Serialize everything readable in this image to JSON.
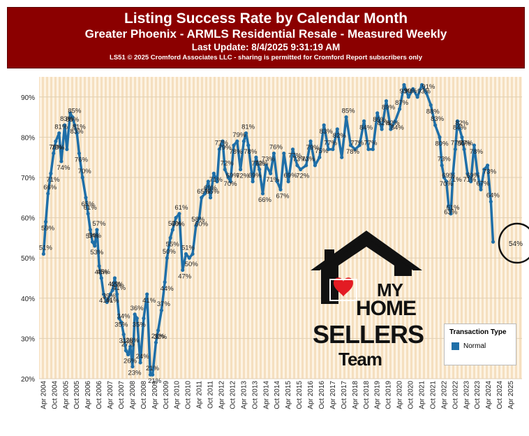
{
  "header": {
    "title": "Listing Success Rate by Calendar Month",
    "subtitle": "Greater Phoenix - ARMLS Residential Resale - Measured Weekly",
    "last_update": "Last Update: 8/4/2025 9:31:19 AM",
    "copyright": "LS51 © 2025 Cromford Associates LLC - sharing is permitted for Cromford Report subscribers only"
  },
  "legend": {
    "title": "Transaction Type",
    "item": "Normal",
    "color": "#1f6fa8"
  },
  "logo": {
    "line1": "MY",
    "line2": "HOME",
    "line3": "SELLERS",
    "line4": "Team",
    "heart_color": "#e31b23"
  },
  "annotation": {
    "circled_label": "54%"
  },
  "chart_data": {
    "type": "line",
    "title": "Listing Success Rate by Calendar Month",
    "ylim": [
      20,
      95
    ],
    "y_ticks": [
      "20%",
      "30%",
      "40%",
      "50%",
      "60%",
      "70%",
      "80%",
      "90%"
    ],
    "y_tick_values": [
      20,
      30,
      40,
      50,
      60,
      70,
      80,
      90
    ],
    "x_ticks": [
      "Apr 2004",
      "Oct 2004",
      "Apr 2005",
      "Oct 2005",
      "Apr 2006",
      "Oct 2006",
      "Apr 2007",
      "Oct 2007",
      "Apr 2008",
      "Oct 2008",
      "Apr 2009",
      "Oct 2009",
      "Apr 2010",
      "Oct 2010",
      "Apr 2011",
      "Oct 2011",
      "Apr 2012",
      "Oct 2012",
      "Apr 2013",
      "Oct 2013",
      "Apr 2014",
      "Oct 2014",
      "Apr 2015",
      "Oct 2015",
      "Apr 2016",
      "Oct 2016",
      "Apr 2017",
      "Oct 2017",
      "Apr 2018",
      "Oct 2018",
      "Apr 2019",
      "Oct 2019",
      "Apr 2020",
      "Oct 2020",
      "Apr 2021",
      "Oct 2021",
      "Apr 2022",
      "Oct 2022",
      "Apr 2023",
      "Oct 2023",
      "Apr 2024",
      "Oct 2024",
      "Apr 2025"
    ],
    "series": [
      {
        "name": "Normal",
        "color": "#1f6fa8",
        "points": [
          [
            2004.0,
            51
          ],
          [
            2004.1,
            59
          ],
          [
            2004.2,
            66
          ],
          [
            2004.33,
            71
          ],
          [
            2004.45,
            76
          ],
          [
            2004.55,
            79
          ],
          [
            2004.7,
            81
          ],
          [
            2004.8,
            74
          ],
          [
            2004.95,
            83
          ],
          [
            2005.05,
            77
          ],
          [
            2005.2,
            86
          ],
          [
            2005.3,
            85
          ],
          [
            2005.4,
            83
          ],
          [
            2005.5,
            81
          ],
          [
            2005.6,
            76
          ],
          [
            2005.75,
            70
          ],
          [
            2005.9,
            65
          ],
          [
            2006.0,
            61
          ],
          [
            2006.1,
            57
          ],
          [
            2006.2,
            54
          ],
          [
            2006.3,
            53
          ],
          [
            2006.4,
            57
          ],
          [
            2006.5,
            48
          ],
          [
            2006.6,
            45
          ],
          [
            2006.7,
            41
          ],
          [
            2006.85,
            39
          ],
          [
            2007.0,
            41
          ],
          [
            2007.1,
            42
          ],
          [
            2007.2,
            45
          ],
          [
            2007.3,
            41
          ],
          [
            2007.4,
            35
          ],
          [
            2007.5,
            34
          ],
          [
            2007.6,
            31
          ],
          [
            2007.7,
            27
          ],
          [
            2007.8,
            26
          ],
          [
            2007.9,
            28
          ],
          [
            2008.0,
            23
          ],
          [
            2008.1,
            36
          ],
          [
            2008.2,
            35
          ],
          [
            2008.35,
            24
          ],
          [
            2008.5,
            35
          ],
          [
            2008.65,
            41
          ],
          [
            2008.8,
            21
          ],
          [
            2008.9,
            21
          ],
          [
            2009.05,
            29
          ],
          [
            2009.15,
            32
          ],
          [
            2009.3,
            37
          ],
          [
            2009.45,
            44
          ],
          [
            2009.55,
            50
          ],
          [
            2009.7,
            55
          ],
          [
            2009.8,
            57
          ],
          [
            2009.95,
            60
          ],
          [
            2010.1,
            61
          ],
          [
            2010.25,
            47
          ],
          [
            2010.4,
            51
          ],
          [
            2010.55,
            50
          ],
          [
            2010.7,
            51
          ],
          [
            2010.85,
            58
          ],
          [
            2011.0,
            60
          ],
          [
            2011.1,
            65
          ],
          [
            2011.25,
            66
          ],
          [
            2011.4,
            69
          ],
          [
            2011.5,
            65
          ],
          [
            2011.65,
            71
          ],
          [
            2011.8,
            69
          ],
          [
            2011.9,
            77
          ],
          [
            2012.05,
            79
          ],
          [
            2012.15,
            72
          ],
          [
            2012.3,
            70
          ],
          [
            2012.4,
            69
          ],
          [
            2012.55,
            78
          ],
          [
            2012.7,
            79
          ],
          [
            2012.85,
            72
          ],
          [
            2013.0,
            79
          ],
          [
            2013.1,
            81
          ],
          [
            2013.2,
            78
          ],
          [
            2013.4,
            69
          ],
          [
            2013.55,
            75
          ],
          [
            2013.7,
            72
          ],
          [
            2013.85,
            66
          ],
          [
            2014.0,
            73
          ],
          [
            2014.2,
            71
          ],
          [
            2014.35,
            76
          ],
          [
            2014.5,
            69
          ],
          [
            2014.65,
            67
          ],
          [
            2014.8,
            76
          ],
          [
            2015.0,
            69
          ],
          [
            2015.2,
            77
          ],
          [
            2015.4,
            73
          ],
          [
            2015.55,
            72
          ],
          [
            2015.8,
            73
          ],
          [
            2016.0,
            79
          ],
          [
            2016.2,
            73
          ],
          [
            2016.4,
            75
          ],
          [
            2016.6,
            83
          ],
          [
            2016.8,
            77
          ],
          [
            2017.0,
            77
          ],
          [
            2017.2,
            82
          ],
          [
            2017.4,
            75
          ],
          [
            2017.6,
            85
          ],
          [
            2017.8,
            78
          ],
          [
            2018.0,
            77
          ],
          [
            2018.2,
            78
          ],
          [
            2018.4,
            84
          ],
          [
            2018.6,
            77
          ],
          [
            2018.8,
            77
          ],
          [
            2019.0,
            86
          ],
          [
            2019.2,
            82
          ],
          [
            2019.4,
            89
          ],
          [
            2019.6,
            82
          ],
          [
            2019.8,
            84
          ],
          [
            2020.0,
            87
          ],
          [
            2020.2,
            93
          ],
          [
            2020.4,
            90
          ],
          [
            2020.6,
            92
          ],
          [
            2020.8,
            90
          ],
          [
            2021.0,
            93
          ],
          [
            2021.2,
            91
          ],
          [
            2021.4,
            88
          ],
          [
            2021.6,
            83
          ],
          [
            2021.8,
            80
          ],
          [
            2021.9,
            73
          ],
          [
            2022.0,
            70
          ],
          [
            2022.1,
            69
          ],
          [
            2022.2,
            63
          ],
          [
            2022.3,
            61
          ],
          [
            2022.4,
            71
          ],
          [
            2022.5,
            77
          ],
          [
            2022.6,
            84
          ],
          [
            2022.7,
            82
          ],
          [
            2022.8,
            80
          ],
          [
            2022.9,
            77
          ],
          [
            2023.05,
            71
          ],
          [
            2023.2,
            69
          ],
          [
            2023.35,
            78
          ],
          [
            2023.5,
            71
          ],
          [
            2023.65,
            67
          ],
          [
            2023.8,
            72
          ],
          [
            2023.95,
            73
          ],
          [
            2024.1,
            64
          ],
          [
            2024.2,
            54
          ]
        ]
      }
    ],
    "point_labels": [
      [
        2004.0,
        51,
        "51%"
      ],
      [
        2004.1,
        59,
        "59%"
      ],
      [
        2004.2,
        66,
        "66%"
      ],
      [
        2004.33,
        71,
        "71%"
      ],
      [
        2004.45,
        76,
        "76%"
      ],
      [
        2004.55,
        79,
        "79%"
      ],
      [
        2004.7,
        81,
        "81%"
      ],
      [
        2004.8,
        74,
        "74%"
      ],
      [
        2004.95,
        83,
        "83%"
      ],
      [
        2005.2,
        86,
        "86%"
      ],
      [
        2005.3,
        85,
        "85%"
      ],
      [
        2005.4,
        83,
        "83%"
      ],
      [
        2005.5,
        81,
        "81%"
      ],
      [
        2005.6,
        76,
        "76%"
      ],
      [
        2005.75,
        70,
        "70%"
      ],
      [
        2005.9,
        65,
        "65%"
      ],
      [
        2006.0,
        61,
        "61%"
      ],
      [
        2006.1,
        57,
        "57%"
      ],
      [
        2006.2,
        54,
        "54%"
      ],
      [
        2006.3,
        53,
        "53%"
      ],
      [
        2006.4,
        57,
        "57%"
      ],
      [
        2006.5,
        48,
        "48%"
      ],
      [
        2006.6,
        45,
        "45%"
      ],
      [
        2006.7,
        41,
        "41%"
      ],
      [
        2006.85,
        39,
        "39%"
      ],
      [
        2007.0,
        41,
        "41%"
      ],
      [
        2007.1,
        42,
        "42%"
      ],
      [
        2007.2,
        45,
        "45%"
      ],
      [
        2007.3,
        41,
        "41%"
      ],
      [
        2007.4,
        35,
        "35%"
      ],
      [
        2007.5,
        34,
        "34%"
      ],
      [
        2007.6,
        31,
        "31%"
      ],
      [
        2007.7,
        27,
        "27%"
      ],
      [
        2007.8,
        26,
        "26%"
      ],
      [
        2007.9,
        28,
        "28%"
      ],
      [
        2008.0,
        23,
        "23%"
      ],
      [
        2008.1,
        36,
        "36%"
      ],
      [
        2008.2,
        35,
        "35%"
      ],
      [
        2008.35,
        24,
        "24%"
      ],
      [
        2008.65,
        41,
        "41%"
      ],
      [
        2008.8,
        21,
        "21%"
      ],
      [
        2008.9,
        21,
        "21%"
      ],
      [
        2009.05,
        29,
        "29%"
      ],
      [
        2009.15,
        32,
        "32%"
      ],
      [
        2009.3,
        37,
        "37%"
      ],
      [
        2009.45,
        44,
        "44%"
      ],
      [
        2009.55,
        50,
        "50%"
      ],
      [
        2009.7,
        55,
        "55%"
      ],
      [
        2009.8,
        57,
        "57%"
      ],
      [
        2009.95,
        60,
        "60%"
      ],
      [
        2010.1,
        61,
        "61%"
      ],
      [
        2010.25,
        47,
        "47%"
      ],
      [
        2010.4,
        51,
        "51%"
      ],
      [
        2010.55,
        50,
        "50%"
      ],
      [
        2010.85,
        58,
        "58%"
      ],
      [
        2011.0,
        60,
        "60%"
      ],
      [
        2011.1,
        65,
        "65%"
      ],
      [
        2011.4,
        69,
        "69%"
      ],
      [
        2011.5,
        65,
        "65%"
      ],
      [
        2011.65,
        71,
        "71%"
      ],
      [
        2011.9,
        77,
        "77%"
      ],
      [
        2012.05,
        79,
        "79%"
      ],
      [
        2012.15,
        72,
        "72%"
      ],
      [
        2012.3,
        70,
        "70%"
      ],
      [
        2012.4,
        69,
        "69%"
      ],
      [
        2012.55,
        78,
        "78%"
      ],
      [
        2012.7,
        79,
        "79%"
      ],
      [
        2012.85,
        72,
        "72%"
      ],
      [
        2013.1,
        81,
        "81%"
      ],
      [
        2013.2,
        78,
        "78%"
      ],
      [
        2013.4,
        69,
        "69%"
      ],
      [
        2013.55,
        75,
        "75%"
      ],
      [
        2013.7,
        72,
        "72%"
      ],
      [
        2013.85,
        66,
        "66%"
      ],
      [
        2014.0,
        73,
        "73%"
      ],
      [
        2014.2,
        71,
        "71%"
      ],
      [
        2014.35,
        76,
        "76%"
      ],
      [
        2014.65,
        67,
        "67%"
      ],
      [
        2015.0,
        69,
        "69%"
      ],
      [
        2015.2,
        77,
        "77%"
      ],
      [
        2015.4,
        73,
        "73%"
      ],
      [
        2015.55,
        72,
        "72%"
      ],
      [
        2015.8,
        73,
        "73%"
      ],
      [
        2016.0,
        79,
        "79%"
      ],
      [
        2016.4,
        75,
        "75%"
      ],
      [
        2016.6,
        83,
        "83%"
      ],
      [
        2016.8,
        77,
        "77%"
      ],
      [
        2017.2,
        82,
        "82%"
      ],
      [
        2017.6,
        85,
        "85%"
      ],
      [
        2017.8,
        78,
        "78%"
      ],
      [
        2018.0,
        77,
        "77%"
      ],
      [
        2018.4,
        84,
        "84%"
      ],
      [
        2018.6,
        77,
        "77%"
      ],
      [
        2019.0,
        86,
        "86%"
      ],
      [
        2019.2,
        82,
        "82%"
      ],
      [
        2019.4,
        89,
        "89%"
      ],
      [
        2019.6,
        82,
        "82%"
      ],
      [
        2019.8,
        84,
        "84%"
      ],
      [
        2020.0,
        87,
        "87%"
      ],
      [
        2020.2,
        93,
        "93%"
      ],
      [
        2020.4,
        90,
        "90%"
      ],
      [
        2021.0,
        93,
        "93%"
      ],
      [
        2021.2,
        91,
        "91%"
      ],
      [
        2021.4,
        88,
        "88%"
      ],
      [
        2021.6,
        83,
        "83%"
      ],
      [
        2021.8,
        80,
        "80%"
      ],
      [
        2021.9,
        73,
        "73%"
      ],
      [
        2022.0,
        70,
        "70%"
      ],
      [
        2022.1,
        69,
        "69%"
      ],
      [
        2022.2,
        63,
        "63%"
      ],
      [
        2022.3,
        61,
        "61%"
      ],
      [
        2022.4,
        71,
        "71%"
      ],
      [
        2022.5,
        77,
        "77%"
      ],
      [
        2022.6,
        84,
        "84%"
      ],
      [
        2022.7,
        82,
        "82%"
      ],
      [
        2022.8,
        80,
        "80%"
      ],
      [
        2022.9,
        77,
        "77%"
      ],
      [
        2023.05,
        71,
        "71%"
      ],
      [
        2023.2,
        69,
        "69%"
      ],
      [
        2023.35,
        78,
        "78%"
      ],
      [
        2023.65,
        67,
        "67%"
      ],
      [
        2023.95,
        73,
        "73%"
      ],
      [
        2024.1,
        64,
        "64%"
      ]
    ]
  }
}
